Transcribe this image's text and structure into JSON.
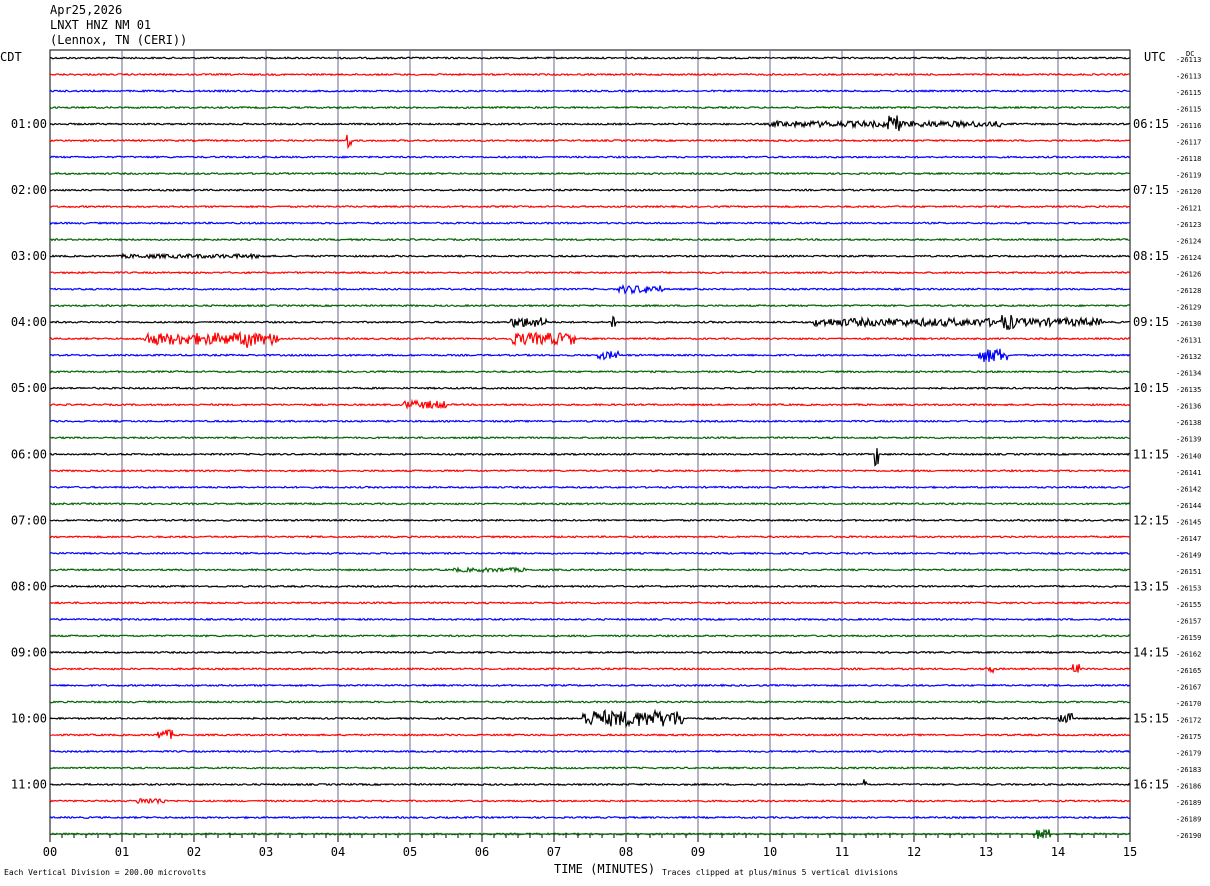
{
  "header": {
    "date": "Apr25,2026",
    "station": "LNXT HNZ NM 01",
    "location": "(Lennox, TN (CERI))"
  },
  "left_axis_label": "CDT",
  "right_axis_label": "UTC",
  "dc_label": "DC",
  "footer": {
    "scale_note": "Each Vertical Division =  200.00 microvolts",
    "xlabel": "TIME (MINUTES)",
    "clip_note": "Traces clipped at plus/minus 5 vertical divisions"
  },
  "colors": {
    "trace_cycle": [
      "#000000",
      "#ff0000",
      "#0000ff",
      "#006400"
    ],
    "grid": "#6a6a8a"
  },
  "chart_data": {
    "type": "line",
    "title": "LNXT HNZ NM 01",
    "xlabel": "TIME (MINUTES)",
    "x_ticks": [
      "00",
      "01",
      "02",
      "03",
      "04",
      "05",
      "06",
      "07",
      "08",
      "09",
      "10",
      "11",
      "12",
      "13",
      "14",
      "15"
    ],
    "xlim": [
      0,
      15
    ],
    "left_time_labels": [
      "01:00",
      "02:00",
      "03:00",
      "04:00",
      "05:00",
      "06:00",
      "07:00",
      "08:00",
      "09:00",
      "10:00",
      "11:00"
    ],
    "right_time_labels": [
      "06:15",
      "07:15",
      "08:15",
      "09:15",
      "10:15",
      "11:15",
      "12:15",
      "13:15",
      "14:15",
      "15:15",
      "16:15"
    ],
    "dc_offsets": [
      "-26113",
      "-26113",
      "-26115",
      "-26115",
      "-26116",
      "-26117",
      "-26118",
      "-26119",
      "-26120",
      "-26121",
      "-26123",
      "-26124",
      "-26124",
      "-26126",
      "-26128",
      "-26129",
      "-26130",
      "-26131",
      "-26132",
      "-26134",
      "-26135",
      "-26136",
      "-26138",
      "-26139",
      "-26140",
      "-26141",
      "-26142",
      "-26144",
      "-26145",
      "-26147",
      "-26149",
      "-26151",
      "-26153",
      "-26155",
      "-26157",
      "-26159",
      "-26162",
      "-26165",
      "-26167",
      "-26170",
      "-26172",
      "-26175",
      "-26179",
      "-26183",
      "-26186",
      "-26189",
      "-26189",
      "-26190"
    ],
    "events": [
      {
        "trace": 4,
        "x": [
          10.0,
          13.2
        ],
        "amp": 3
      },
      {
        "trace": 4,
        "x": [
          11.6,
          11.8
        ],
        "amp": 9
      },
      {
        "trace": 5,
        "x": [
          4.1,
          4.2
        ],
        "amp": 8
      },
      {
        "trace": 12,
        "x": [
          1.0,
          3.0
        ],
        "amp": 2
      },
      {
        "trace": 14,
        "x": [
          7.9,
          8.5
        ],
        "amp": 4
      },
      {
        "trace": 16,
        "x": [
          6.4,
          6.9
        ],
        "amp": 5
      },
      {
        "trace": 16,
        "x": [
          7.8,
          7.85
        ],
        "amp": 9
      },
      {
        "trace": 16,
        "x": [
          10.6,
          14.6
        ],
        "amp": 4
      },
      {
        "trace": 16,
        "x": [
          13.2,
          13.4
        ],
        "amp": 8
      },
      {
        "trace": 17,
        "x": [
          1.3,
          3.2
        ],
        "amp": 6
      },
      {
        "trace": 17,
        "x": [
          2.7,
          2.8
        ],
        "amp": 12
      },
      {
        "trace": 17,
        "x": [
          6.4,
          7.3
        ],
        "amp": 6
      },
      {
        "trace": 18,
        "x": [
          7.6,
          7.9
        ],
        "amp": 4
      },
      {
        "trace": 18,
        "x": [
          12.9,
          13.3
        ],
        "amp": 7
      },
      {
        "trace": 21,
        "x": [
          4.9,
          5.5
        ],
        "amp": 4
      },
      {
        "trace": 24,
        "x": [
          11.45,
          11.5
        ],
        "amp": 12
      },
      {
        "trace": 31,
        "x": [
          5.6,
          6.6
        ],
        "amp": 2
      },
      {
        "trace": 37,
        "x": [
          13.0,
          13.1
        ],
        "amp": 4
      },
      {
        "trace": 37,
        "x": [
          14.2,
          14.3
        ],
        "amp": 5
      },
      {
        "trace": 40,
        "x": [
          7.4,
          8.8
        ],
        "amp": 8
      },
      {
        "trace": 40,
        "x": [
          14.0,
          14.2
        ],
        "amp": 5
      },
      {
        "trace": 41,
        "x": [
          1.5,
          1.7
        ],
        "amp": 5
      },
      {
        "trace": 44,
        "x": [
          11.3,
          11.35
        ],
        "amp": 7
      },
      {
        "trace": 45,
        "x": [
          1.2,
          1.6
        ],
        "amp": 3
      },
      {
        "trace": 47,
        "x": [
          13.7,
          13.9
        ],
        "amp": 5
      }
    ]
  }
}
